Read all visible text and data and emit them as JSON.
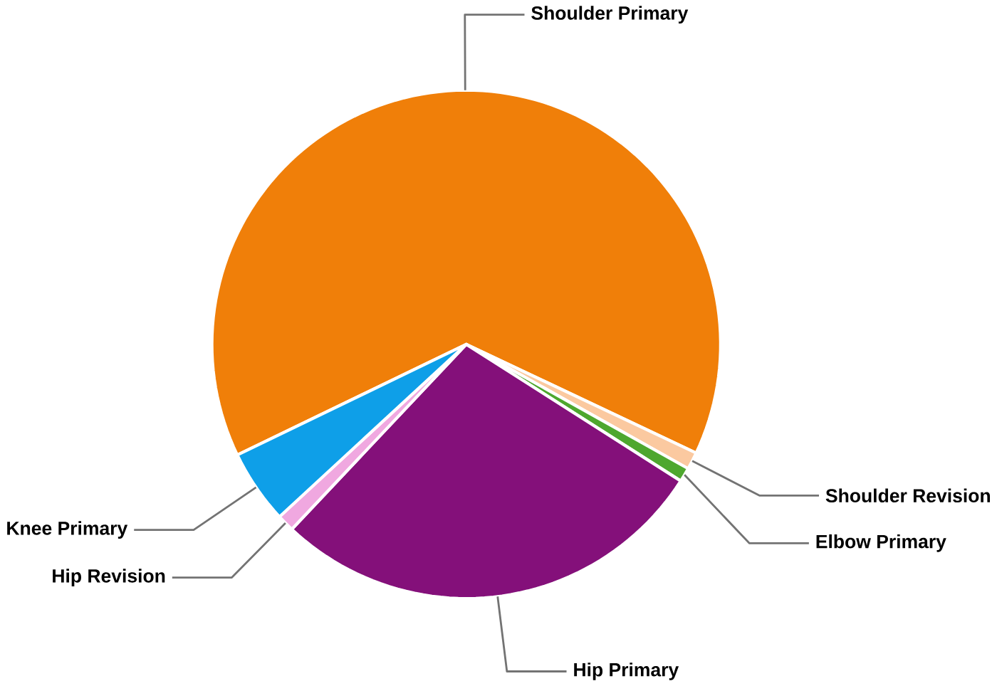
{
  "chart_data": {
    "type": "pie",
    "categories": [
      "Shoulder Primary",
      "Shoulder Revision",
      "Elbow Primary",
      "Hip Primary",
      "Hip Revision",
      "Knee Primary"
    ],
    "values": [
      64.2,
      1.1,
      0.9,
      28.0,
      1.1,
      4.7
    ],
    "colors": [
      "#f07f09",
      "#fbc9a0",
      "#4ea72e",
      "#84107a",
      "#f0a8e0",
      "#0e9fe8"
    ]
  }
}
